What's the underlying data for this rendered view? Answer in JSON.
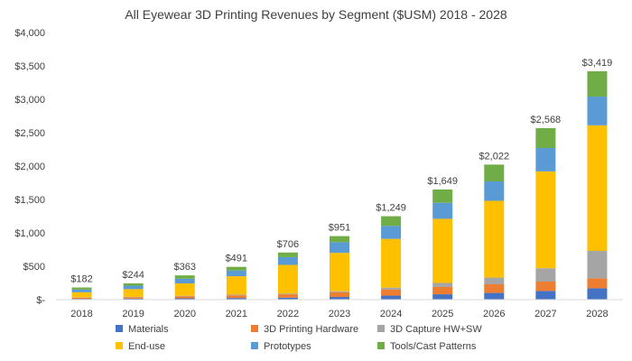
{
  "chart_data": {
    "type": "bar",
    "stacked": true,
    "title": "All Eyewear 3D Printing Revenues by Segment ($USM) 2018 - 2028",
    "xlabel": "",
    "ylabel": "",
    "ylim": [
      0,
      4000
    ],
    "yticks": [
      0,
      500,
      1000,
      1500,
      2000,
      2500,
      3000,
      3500,
      4000
    ],
    "ytick_labels": [
      "$-",
      "$500",
      "$1,000",
      "$1,500",
      "$2,000",
      "$2,500",
      "$3,000",
      "$3,500",
      "$4,000"
    ],
    "grid": false,
    "legend_position": "bottom",
    "categories": [
      "2018",
      "2019",
      "2020",
      "2021",
      "2022",
      "2023",
      "2024",
      "2025",
      "2026",
      "2027",
      "2028"
    ],
    "series": [
      {
        "name": "Materials",
        "color": "#4472C4",
        "values": [
          12,
          15,
          20,
          25,
          30,
          40,
          60,
          80,
          100,
          130,
          170
        ]
      },
      {
        "name": "3D Printing Hardware",
        "color": "#ED7D31",
        "values": [
          18,
          22,
          30,
          40,
          50,
          70,
          90,
          110,
          130,
          140,
          150
        ]
      },
      {
        "name": "3D Capture HW+SW",
        "color": "#A5A5A5",
        "values": [
          5,
          5,
          8,
          10,
          10,
          15,
          30,
          60,
          100,
          200,
          410
        ]
      },
      {
        "name": "End-use",
        "color": "#FFC000",
        "values": [
          75,
          115,
          185,
          275,
          430,
          575,
          730,
          960,
          1150,
          1450,
          1880
        ]
      },
      {
        "name": "Prototypes",
        "color": "#5B9BD5",
        "values": [
          42,
          52,
          70,
          86,
          116,
          160,
          195,
          240,
          290,
          350,
          430
        ]
      },
      {
        "name": "Tools/Cast Patterns",
        "color": "#70AD47",
        "values": [
          30,
          35,
          50,
          55,
          70,
          91,
          144,
          199,
          252,
          298,
          379
        ]
      }
    ],
    "totals": [
      182,
      244,
      363,
      491,
      706,
      951,
      1249,
      1649,
      2022,
      2568,
      3419
    ],
    "total_labels": [
      "$182",
      "$244",
      "$363",
      "$491",
      "$706",
      "$951",
      "$1,249",
      "$1,649",
      "$2,022",
      "$2,568",
      "$3,419"
    ]
  }
}
